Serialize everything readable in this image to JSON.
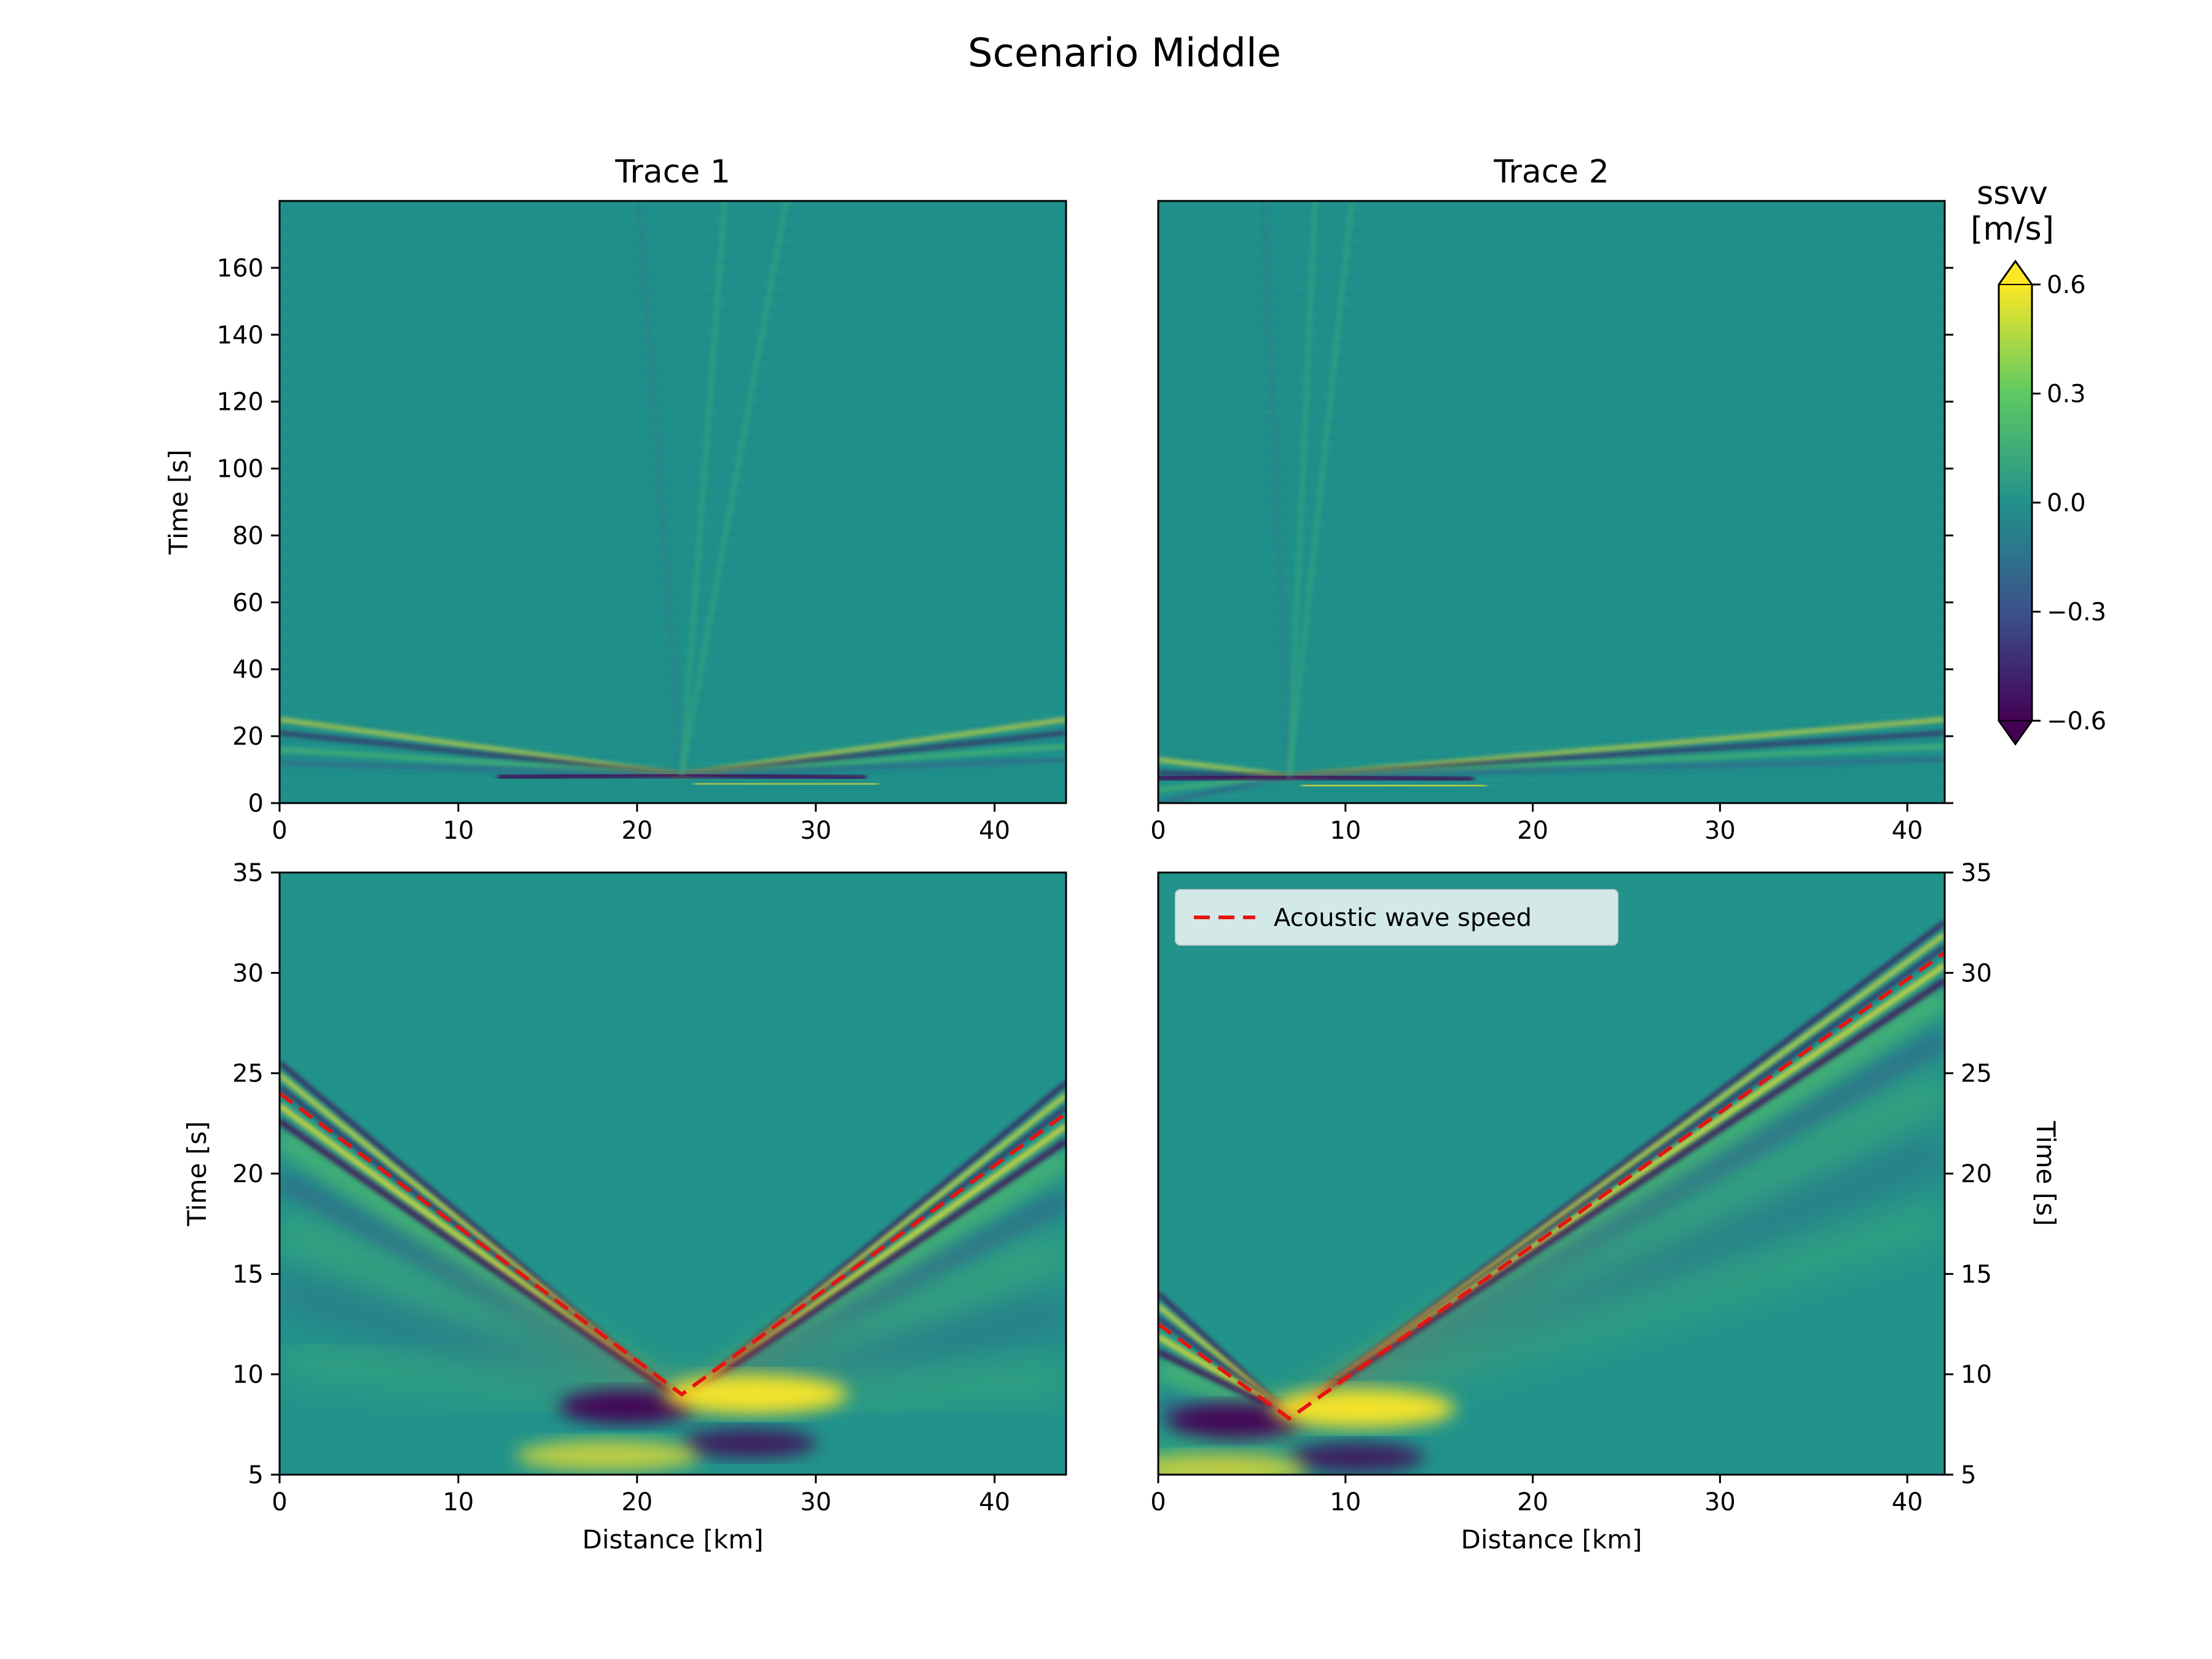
{
  "figure": {
    "suptitle": "Scenario Middle"
  },
  "colormap": {
    "name": "viridis",
    "colors": [
      "#440154",
      "#3b528b",
      "#21918c",
      "#5ec962",
      "#fde725"
    ]
  },
  "colorbar": {
    "label_line1": "ssvv",
    "label_line2": "[m/s]",
    "ticks": [
      "0.6",
      "0.3",
      "0.0",
      "−0.3",
      "−0.6"
    ],
    "range": [
      -0.6,
      0.6
    ],
    "extend": "both"
  },
  "legend": {
    "label": "Acoustic wave speed",
    "line_color": "#e8140f",
    "placement": "upper-left"
  },
  "chart_data": [
    {
      "type": "heatmap",
      "panel": "top-left",
      "title": "Trace 1",
      "xlabel": "",
      "ylabel": "Time [s]",
      "xlim": [
        0,
        44
      ],
      "ylim": [
        0,
        180
      ],
      "xticks": [
        "0",
        "10",
        "20",
        "30",
        "40"
      ],
      "yticks": [
        "0",
        "20",
        "40",
        "60",
        "80",
        "100",
        "120",
        "140",
        "160"
      ],
      "source_x_km": 22.5,
      "arrival_time_s": 8.5
    },
    {
      "type": "heatmap",
      "panel": "top-right",
      "title": "Trace 2",
      "xlabel": "",
      "ylabel": "",
      "xlim": [
        0,
        42
      ],
      "ylim": [
        0,
        180
      ],
      "xticks": [
        "0",
        "10",
        "20",
        "30",
        "40"
      ],
      "yticks": [],
      "source_x_km": 7,
      "arrival_time_s": 8
    },
    {
      "type": "heatmap",
      "panel": "bottom-left",
      "title": "",
      "xlabel": "Distance [km]",
      "ylabel": "Time [s]",
      "xlim": [
        0,
        44
      ],
      "ylim": [
        5,
        35
      ],
      "xticks": [
        "0",
        "10",
        "20",
        "30",
        "40"
      ],
      "yticks": [
        "5",
        "10",
        "15",
        "20",
        "25",
        "30",
        "35"
      ],
      "source_x_km": 22.5,
      "arrival_time_s": 8.7,
      "acoustic_line": {
        "x": [
          0,
          22.5,
          44
        ],
        "y": [
          24,
          9,
          23
        ]
      }
    },
    {
      "type": "heatmap",
      "panel": "bottom-right",
      "title": "",
      "xlabel": "Distance [km]",
      "ylabel": "Time [s]",
      "xlim": [
        0,
        42
      ],
      "ylim": [
        5,
        35
      ],
      "xticks": [
        "0",
        "10",
        "20",
        "30",
        "40"
      ],
      "yticks": [
        "5",
        "10",
        "15",
        "20",
        "25",
        "30",
        "35"
      ],
      "source_x_km": 7,
      "arrival_time_s": 8,
      "acoustic_line": {
        "x": [
          0,
          7,
          42
        ],
        "y": [
          12.5,
          7.8,
          31
        ]
      }
    }
  ]
}
